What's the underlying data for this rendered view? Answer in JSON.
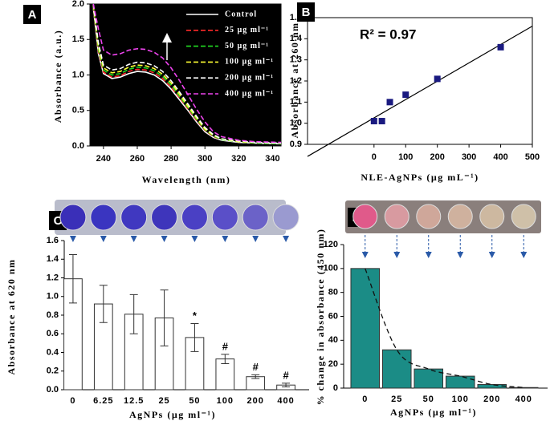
{
  "chart_data": [
    {
      "type": "line",
      "panel": "A",
      "plot_background": "#000000",
      "x_label": "Wavelength (nm)",
      "y_label": "Absorbance (a.u.)",
      "x": [
        234,
        237,
        240,
        245,
        250,
        255,
        260,
        265,
        270,
        275,
        280,
        285,
        290,
        295,
        300,
        305,
        310,
        320,
        330,
        345
      ],
      "xlim": [
        232,
        345
      ],
      "xticks": [
        240,
        260,
        280,
        300,
        320,
        340
      ],
      "ylim": [
        0,
        2
      ],
      "yticks": [
        {
          "value": 0,
          "label": "0.0"
        },
        {
          "value": 0.5,
          "label": "0.5"
        },
        {
          "value": 1,
          "label": "1.0"
        },
        {
          "value": 1.5,
          "label": "1.5"
        },
        {
          "value": 2,
          "label": "2.0"
        }
      ],
      "series": [
        {
          "name": "Control",
          "color": "#ffffff",
          "style": "solid",
          "values": [
            1.95,
            1.3,
            1.02,
            0.95,
            0.97,
            1.02,
            1.05,
            1.04,
            1.0,
            0.92,
            0.8,
            0.65,
            0.5,
            0.34,
            0.2,
            0.12,
            0.08,
            0.05,
            0.04,
            0.03
          ]
        },
        {
          "name": "25 µg ml⁻¹",
          "color": "#ff2a2a",
          "style": "dashed",
          "values": [
            1.97,
            1.33,
            1.04,
            0.97,
            0.99,
            1.05,
            1.08,
            1.07,
            1.03,
            0.95,
            0.83,
            0.68,
            0.52,
            0.36,
            0.22,
            0.13,
            0.09,
            0.06,
            0.04,
            0.03
          ]
        },
        {
          "name": "50 µg ml⁻¹",
          "color": "#22dd22",
          "style": "dashed",
          "values": [
            1.98,
            1.36,
            1.07,
            1.0,
            1.02,
            1.08,
            1.11,
            1.1,
            1.06,
            0.98,
            0.86,
            0.7,
            0.54,
            0.38,
            0.23,
            0.14,
            0.09,
            0.06,
            0.04,
            0.03
          ]
        },
        {
          "name": "100 µg ml⁻¹",
          "color": "#ffff33",
          "style": "dashed",
          "values": [
            1.99,
            1.4,
            1.1,
            1.03,
            1.05,
            1.11,
            1.14,
            1.13,
            1.09,
            1.01,
            0.89,
            0.73,
            0.56,
            0.4,
            0.24,
            0.15,
            0.1,
            0.06,
            0.05,
            0.04
          ]
        },
        {
          "name": "200 µg ml⁻¹",
          "color": "#ffffff",
          "style": "dashed",
          "values": [
            2.0,
            1.45,
            1.14,
            1.07,
            1.09,
            1.15,
            1.18,
            1.17,
            1.13,
            1.05,
            0.92,
            0.76,
            0.59,
            0.42,
            0.26,
            0.16,
            0.1,
            0.07,
            0.05,
            0.04
          ]
        },
        {
          "name": "400 µg ml⁻¹",
          "color": "#ee44ee",
          "style": "dashed",
          "values": [
            2.0,
            1.65,
            1.35,
            1.28,
            1.3,
            1.35,
            1.37,
            1.36,
            1.32,
            1.24,
            1.1,
            0.92,
            0.72,
            0.52,
            0.34,
            0.2,
            0.13,
            0.08,
            0.06,
            0.05
          ]
        }
      ]
    },
    {
      "type": "scatter",
      "panel": "B",
      "annotation": "R² = 0.97",
      "x_label": "NLE-AgNPs (µg mL⁻¹)",
      "y_label": "Absorbance at 260 nm",
      "x": [
        0,
        25,
        50,
        100,
        200,
        400
      ],
      "values": [
        1.01,
        1.01,
        1.1,
        1.135,
        1.21,
        1.36
      ],
      "color": "#1a1a80",
      "xlim": [
        -210,
        500
      ],
      "xticks": [
        0,
        100,
        200,
        300,
        400,
        500
      ],
      "ylim": [
        0.9,
        1.5
      ],
      "yticks": [
        0.9,
        {
          "value": 1,
          "label": "1.0"
        },
        1.1,
        1.2,
        1.3,
        1.4,
        1.5
      ]
    },
    {
      "type": "bar",
      "panel": "C",
      "x_label": "AgNPs (µg ml⁻¹)",
      "y_label": "Absorbance at 620 nm",
      "categories": [
        "0",
        "6.25",
        "12.5",
        "25",
        "50",
        "100",
        "200",
        "400"
      ],
      "values": [
        1.19,
        0.92,
        0.81,
        0.77,
        0.56,
        0.33,
        0.14,
        0.05
      ],
      "errors": [
        0.26,
        0.2,
        0.21,
        0.3,
        0.15,
        0.05,
        0.02,
        0.02
      ],
      "significance": [
        null,
        null,
        null,
        null,
        "*",
        "#",
        "#",
        "#"
      ],
      "color": "#ffffff",
      "ylim": [
        0,
        1.6
      ],
      "yticks": [
        {
          "value": 0,
          "label": "0.0"
        },
        0.2,
        0.4,
        0.6,
        0.8,
        {
          "value": 1,
          "label": "1.0"
        },
        1.2,
        1.4,
        1.6
      ]
    },
    {
      "type": "bar",
      "panel": "D",
      "x_label": "AgNPs (µg ml⁻¹)",
      "y_label": "% change in absorbance (450 nm)",
      "categories": [
        "0",
        "25",
        "50",
        "100",
        "200",
        "400"
      ],
      "values": [
        100,
        32,
        16,
        10,
        3,
        0.5
      ],
      "color": "#1b8c86",
      "trend": true,
      "ylim": [
        0,
        120
      ],
      "yticks": [
        0,
        20,
        40,
        60,
        80,
        100,
        120
      ]
    }
  ]
}
